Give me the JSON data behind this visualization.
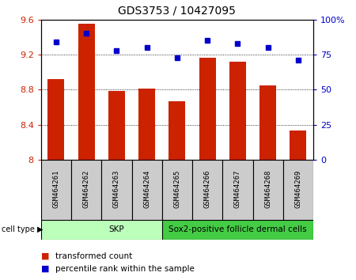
{
  "title": "GDS3753 / 10427095",
  "samples": [
    "GSM464261",
    "GSM464262",
    "GSM464263",
    "GSM464264",
    "GSM464265",
    "GSM464266",
    "GSM464267",
    "GSM464268",
    "GSM464269"
  ],
  "transformed_count": [
    8.92,
    9.55,
    8.78,
    8.81,
    8.67,
    9.16,
    9.12,
    8.85,
    8.33
  ],
  "percentile_rank": [
    84,
    90,
    78,
    80,
    73,
    85,
    83,
    80,
    71
  ],
  "ylim_left": [
    8.0,
    9.6
  ],
  "ylim_right": [
    0,
    100
  ],
  "yticks_left": [
    8.0,
    8.4,
    8.8,
    9.2,
    9.6
  ],
  "yticks_right": [
    0,
    25,
    50,
    75,
    100
  ],
  "ytick_labels_left": [
    "8",
    "8.4",
    "8.8",
    "9.2",
    "9.6"
  ],
  "ytick_labels_right": [
    "0",
    "25",
    "50",
    "75",
    "100%"
  ],
  "bar_color": "#cc2200",
  "dot_color": "#0000cc",
  "cell_types": [
    {
      "label": "SKP",
      "start": 0,
      "end": 4,
      "color": "#bbffbb"
    },
    {
      "label": "Sox2-positive follicle dermal cells",
      "start": 4,
      "end": 8,
      "color": "#44cc44"
    }
  ],
  "cell_type_label": "cell type",
  "legend_items": [
    {
      "color": "#cc2200",
      "label": "transformed count"
    },
    {
      "color": "#0000cc",
      "label": "percentile rank within the sample"
    }
  ],
  "grid_color": "#000000",
  "tick_color_left": "#cc2200",
  "tick_color_right": "#0000cc",
  "bar_width": 0.55,
  "background_color": "#ffffff",
  "sample_box_color": "#cccccc",
  "fig_width": 4.5,
  "fig_height": 3.54,
  "dpi": 100
}
